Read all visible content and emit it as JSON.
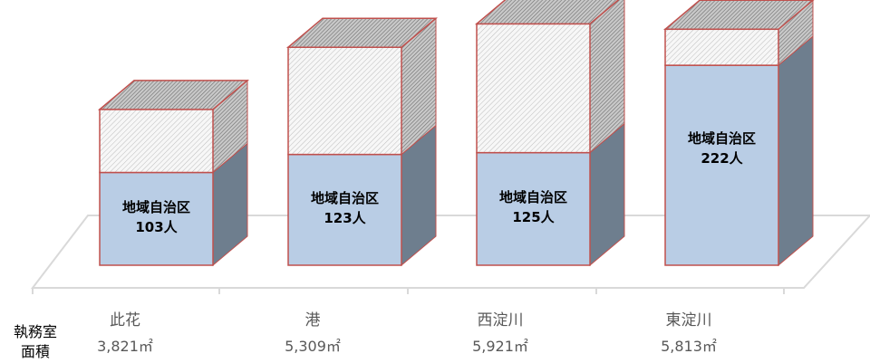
{
  "chart_data": {
    "type": "bar",
    "stacked": true,
    "three_d": true,
    "categories": [
      "此花",
      "港",
      "西淀川",
      "東淀川"
    ],
    "areas": [
      "3,821㎡",
      "5,309㎡",
      "5,921㎡",
      "5,813㎡"
    ],
    "row_label": [
      "執務室",
      "面積"
    ],
    "series": [
      {
        "values": [
          103,
          123,
          125,
          222
        ],
        "label_prefix": "地域自治区",
        "label_unit": "人",
        "color": "#b9cde5",
        "side_color": "#6e7e8e"
      },
      {
        "values": [
          70,
          119,
          143,
          40
        ],
        "color": "#f2f2f2",
        "hatch": "diagonal"
      }
    ],
    "edge_color": "#c0504d",
    "floor_color": "#d9d9d9",
    "ylim": [
      0,
      280
    ],
    "grid": false,
    "legend": "none"
  }
}
